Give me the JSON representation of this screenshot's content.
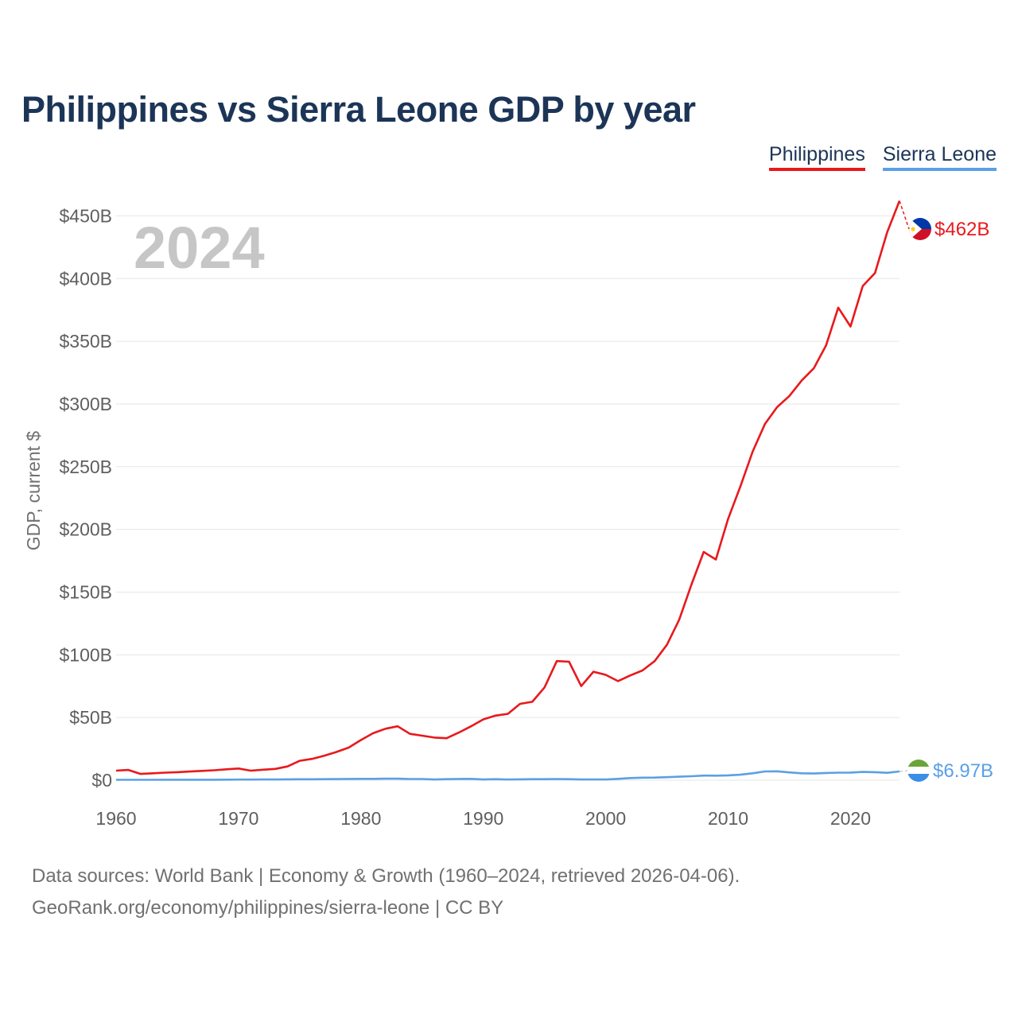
{
  "title": "Philippines vs Sierra Leone GDP by year",
  "legend": {
    "philippines": "Philippines",
    "sierra_leone": "Sierra Leone"
  },
  "year_watermark": "2024",
  "footer": {
    "line1": "Data sources: World Bank | Economy & Growth (1960–2024, retrieved 2026-04-06).",
    "line2": "GeoRank.org/economy/philippines/sierra-leone | CC BY"
  },
  "colors": {
    "philippines": "#e8191c",
    "sierra_leone": "#5aa0e6",
    "title": "#1c3557"
  },
  "chart_data": {
    "type": "line",
    "title": "Philippines vs Sierra Leone GDP by year",
    "xlabel": "",
    "ylabel": "GDP, current $",
    "xlim": [
      1960,
      2024
    ],
    "ylim": [
      0,
      475
    ],
    "x_ticks": [
      1960,
      1970,
      1980,
      1990,
      2000,
      2010,
      2020
    ],
    "x_tick_labels": [
      "1960",
      "1970",
      "1980",
      "1990",
      "2000",
      "2010",
      "2020"
    ],
    "y_ticks": [
      0,
      50,
      100,
      150,
      200,
      250,
      300,
      350,
      400,
      450
    ],
    "y_tick_labels": [
      "$0",
      "$50B",
      "$100B",
      "$150B",
      "$200B",
      "$250B",
      "$300B",
      "$350B",
      "$400B",
      "$450B"
    ],
    "grid": true,
    "x": [
      1960,
      1961,
      1962,
      1963,
      1964,
      1965,
      1966,
      1967,
      1968,
      1969,
      1970,
      1971,
      1972,
      1973,
      1974,
      1975,
      1976,
      1977,
      1978,
      1979,
      1980,
      1981,
      1982,
      1983,
      1984,
      1985,
      1986,
      1987,
      1988,
      1989,
      1990,
      1991,
      1992,
      1993,
      1994,
      1995,
      1996,
      1997,
      1998,
      1999,
      2000,
      2001,
      2002,
      2003,
      2004,
      2005,
      2006,
      2007,
      2008,
      2009,
      2010,
      2011,
      2012,
      2013,
      2014,
      2015,
      2016,
      2017,
      2018,
      2019,
      2020,
      2021,
      2022,
      2023,
      2024
    ],
    "series": [
      {
        "name": "Philippines",
        "end_label": "$462B",
        "values": [
          7.6,
          8.2,
          5.0,
          5.5,
          6.0,
          6.4,
          6.9,
          7.4,
          7.9,
          8.7,
          9.3,
          7.6,
          8.4,
          9.0,
          11.0,
          15.5,
          17.0,
          19.5,
          22.5,
          26.0,
          32.0,
          37.5,
          41.0,
          43.0,
          37.0,
          35.5,
          34.0,
          33.5,
          38.0,
          43.0,
          48.5,
          51.5,
          52.9,
          60.9,
          62.5,
          74.0,
          95.0,
          94.5,
          75.0,
          86.5,
          84.0,
          79.0,
          83.5,
          87.5,
          95.0,
          108.0,
          128.0,
          156.0,
          182.0,
          176.0,
          208.4,
          234.2,
          261.9,
          283.9,
          297.5,
          306.4,
          318.6,
          328.5,
          346.8,
          376.8,
          361.8,
          394.1,
          404.4,
          437.1,
          462.0
        ]
      },
      {
        "name": "Sierra Leone",
        "end_label": "$6.97B",
        "values": [
          0.3,
          0.3,
          0.3,
          0.3,
          0.35,
          0.35,
          0.35,
          0.4,
          0.4,
          0.45,
          0.5,
          0.5,
          0.55,
          0.6,
          0.7,
          0.75,
          0.75,
          0.8,
          0.9,
          1.0,
          1.1,
          1.1,
          1.2,
          1.2,
          0.95,
          0.95,
          0.6,
          0.8,
          1.0,
          1.1,
          0.6,
          0.8,
          0.6,
          0.7,
          0.8,
          0.8,
          0.9,
          0.8,
          0.6,
          0.6,
          0.6,
          1.1,
          1.7,
          2.0,
          2.1,
          2.4,
          2.8,
          3.2,
          3.7,
          3.6,
          3.9,
          4.4,
          5.5,
          7.0,
          7.1,
          6.2,
          5.5,
          5.3,
          5.8,
          6.0,
          6.1,
          6.6,
          6.4,
          5.9,
          6.97
        ]
      }
    ],
    "end_flags": [
      "philippines-flag",
      "sierra-leone-flag"
    ]
  }
}
